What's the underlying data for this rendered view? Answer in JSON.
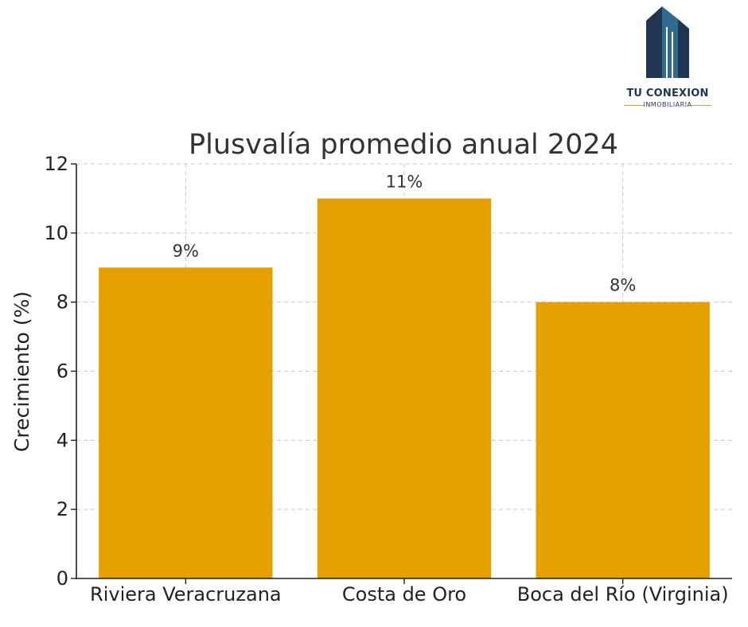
{
  "logo": {
    "brand_name": "TU CONEXION",
    "tagline": "INMOBILIARIA",
    "colors": {
      "building_dark": "#1f3550",
      "building_light": "#2f6b8f",
      "accent": "#c7a44a"
    }
  },
  "chart_data": {
    "type": "bar",
    "title": "Plusvalía promedio anual 2024",
    "xlabel": "",
    "ylabel": "Crecimiento (%)",
    "categories": [
      "Riviera Veracruzana",
      "Costa de Oro",
      "Boca del Río (Virginia)"
    ],
    "values": [
      9,
      11,
      8
    ],
    "data_labels": [
      "9%",
      "11%",
      "8%"
    ],
    "ylim": [
      0,
      12
    ],
    "yticks": [
      0,
      2,
      4,
      6,
      8,
      10,
      12
    ],
    "grid": true,
    "bar_color": "#e4a000"
  }
}
